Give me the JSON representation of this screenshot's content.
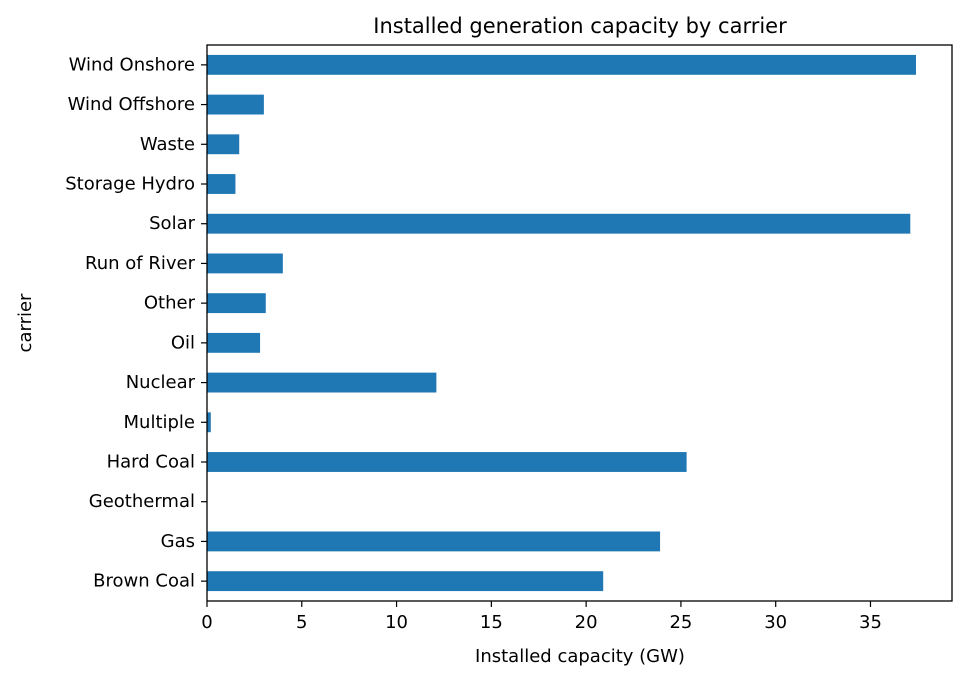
{
  "chart_data": {
    "type": "bar",
    "orientation": "horizontal",
    "title": "Installed generation capacity by carrier",
    "xlabel": "Installed capacity (GW)",
    "ylabel": "carrier",
    "categories": [
      "Wind Onshore",
      "Wind Offshore",
      "Waste",
      "Storage Hydro",
      "Solar",
      "Run of River",
      "Other",
      "Oil",
      "Nuclear",
      "Multiple",
      "Hard Coal",
      "Geothermal",
      "Gas",
      "Brown Coal"
    ],
    "values": [
      37.4,
      3.0,
      1.7,
      1.5,
      37.1,
      4.0,
      3.1,
      2.8,
      12.1,
      0.2,
      25.3,
      0.0,
      23.9,
      20.9
    ],
    "xlim": [
      0,
      39.3
    ],
    "xticks": [
      0,
      5,
      10,
      15,
      20,
      25,
      30,
      35
    ],
    "grid": false,
    "bar_color": "#1f77b4"
  }
}
